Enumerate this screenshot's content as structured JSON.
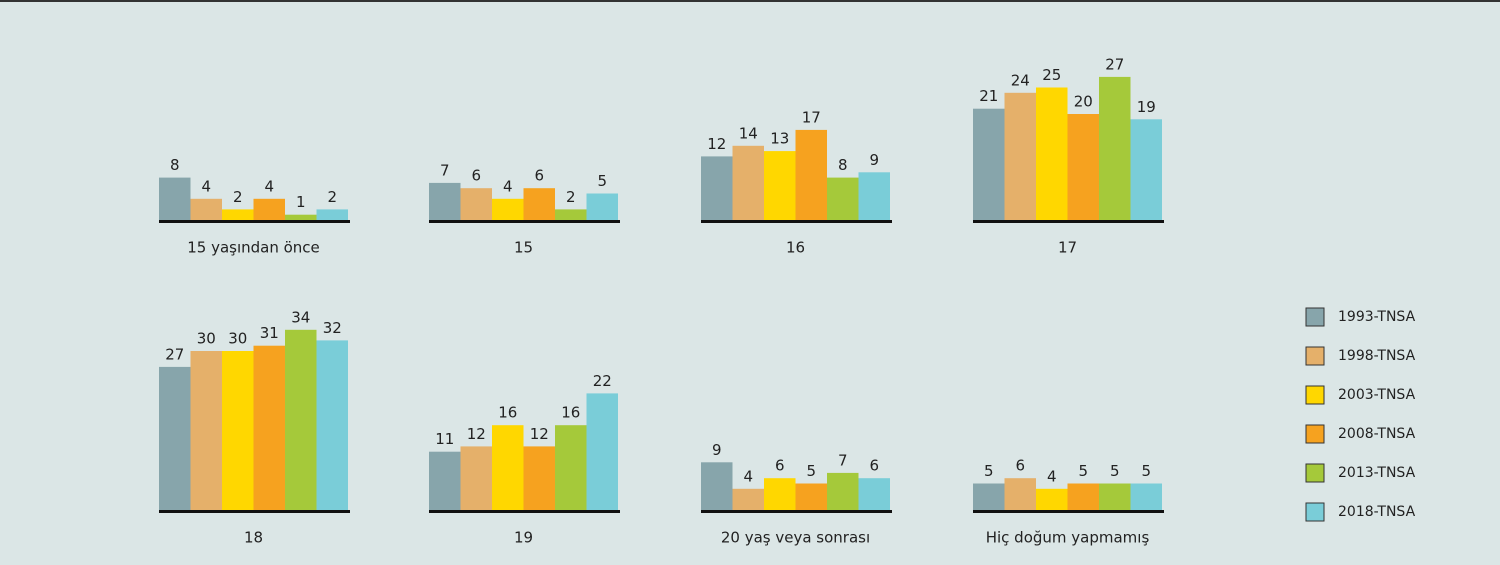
{
  "chart_data": {
    "type": "bar",
    "categories": [
      "15 yaşından önce",
      "15",
      "16",
      "17",
      "18",
      "19",
      "20 yaş veya sonrası",
      "Hiç doğum yapmamış"
    ],
    "series": [
      {
        "name": "1993-TNSA",
        "color": "#87a5ab",
        "values": [
          8,
          7,
          12,
          21,
          27,
          11,
          9,
          5
        ]
      },
      {
        "name": "1998-TNSA",
        "color": "#e5b06a",
        "values": [
          4,
          6,
          14,
          24,
          30,
          12,
          4,
          6
        ]
      },
      {
        "name": "2003-TNSA",
        "color": "#ffd700",
        "values": [
          2,
          4,
          13,
          25,
          30,
          16,
          6,
          4
        ]
      },
      {
        "name": "2008-TNSA",
        "color": "#f6a21f",
        "values": [
          4,
          6,
          17,
          20,
          31,
          12,
          5,
          5
        ]
      },
      {
        "name": "2013-TNSA",
        "color": "#a5c93a",
        "values": [
          1,
          2,
          8,
          27,
          34,
          16,
          7,
          5
        ]
      },
      {
        "name": "2018-TNSA",
        "color": "#7acdd8",
        "values": [
          2,
          5,
          9,
          19,
          32,
          22,
          6,
          5
        ]
      }
    ],
    "legend": "right"
  }
}
